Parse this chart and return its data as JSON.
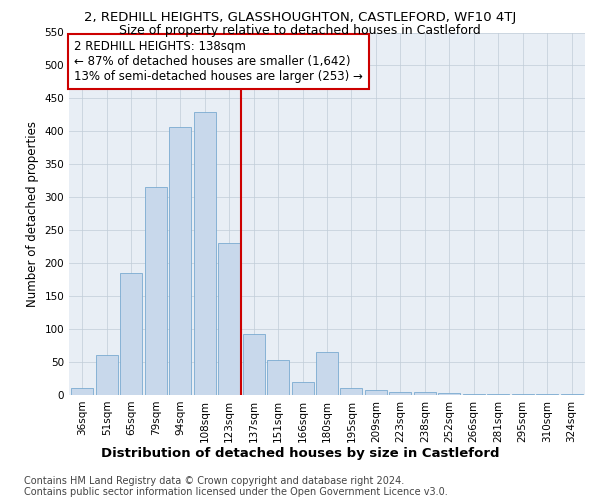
{
  "title": "2, REDHILL HEIGHTS, GLASSHOUGHTON, CASTLEFORD, WF10 4TJ",
  "subtitle": "Size of property relative to detached houses in Castleford",
  "xlabel": "Distribution of detached houses by size in Castleford",
  "ylabel": "Number of detached properties",
  "categories": [
    "36sqm",
    "51sqm",
    "65sqm",
    "79sqm",
    "94sqm",
    "108sqm",
    "123sqm",
    "137sqm",
    "151sqm",
    "166sqm",
    "180sqm",
    "195sqm",
    "209sqm",
    "223sqm",
    "238sqm",
    "252sqm",
    "266sqm",
    "281sqm",
    "295sqm",
    "310sqm",
    "324sqm"
  ],
  "values": [
    10,
    60,
    185,
    315,
    407,
    430,
    230,
    93,
    53,
    20,
    65,
    10,
    7,
    5,
    4,
    3,
    2,
    2,
    1,
    1,
    2
  ],
  "bar_color": "#c8d8eb",
  "bar_edge_color": "#7aaad0",
  "vline_color": "#cc0000",
  "vline_x": 6.5,
  "annotation_line1": "2 REDHILL HEIGHTS: 138sqm",
  "annotation_line2": "← 87% of detached houses are smaller (1,642)",
  "annotation_line3": "13% of semi-detached houses are larger (253) →",
  "annotation_box_facecolor": "#ffffff",
  "annotation_box_edgecolor": "#cc0000",
  "ylim": [
    0,
    550
  ],
  "yticks": [
    0,
    50,
    100,
    150,
    200,
    250,
    300,
    350,
    400,
    450,
    500,
    550
  ],
  "footer_line1": "Contains HM Land Registry data © Crown copyright and database right 2024.",
  "footer_line2": "Contains public sector information licensed under the Open Government Licence v3.0.",
  "bg_color": "#e8eef5",
  "grid_color": "#c0ccd8",
  "title_fontsize": 9.5,
  "subtitle_fontsize": 9,
  "ylabel_fontsize": 8.5,
  "xlabel_fontsize": 9.5,
  "tick_fontsize": 7.5,
  "annotation_fontsize": 8.5,
  "footer_fontsize": 7
}
